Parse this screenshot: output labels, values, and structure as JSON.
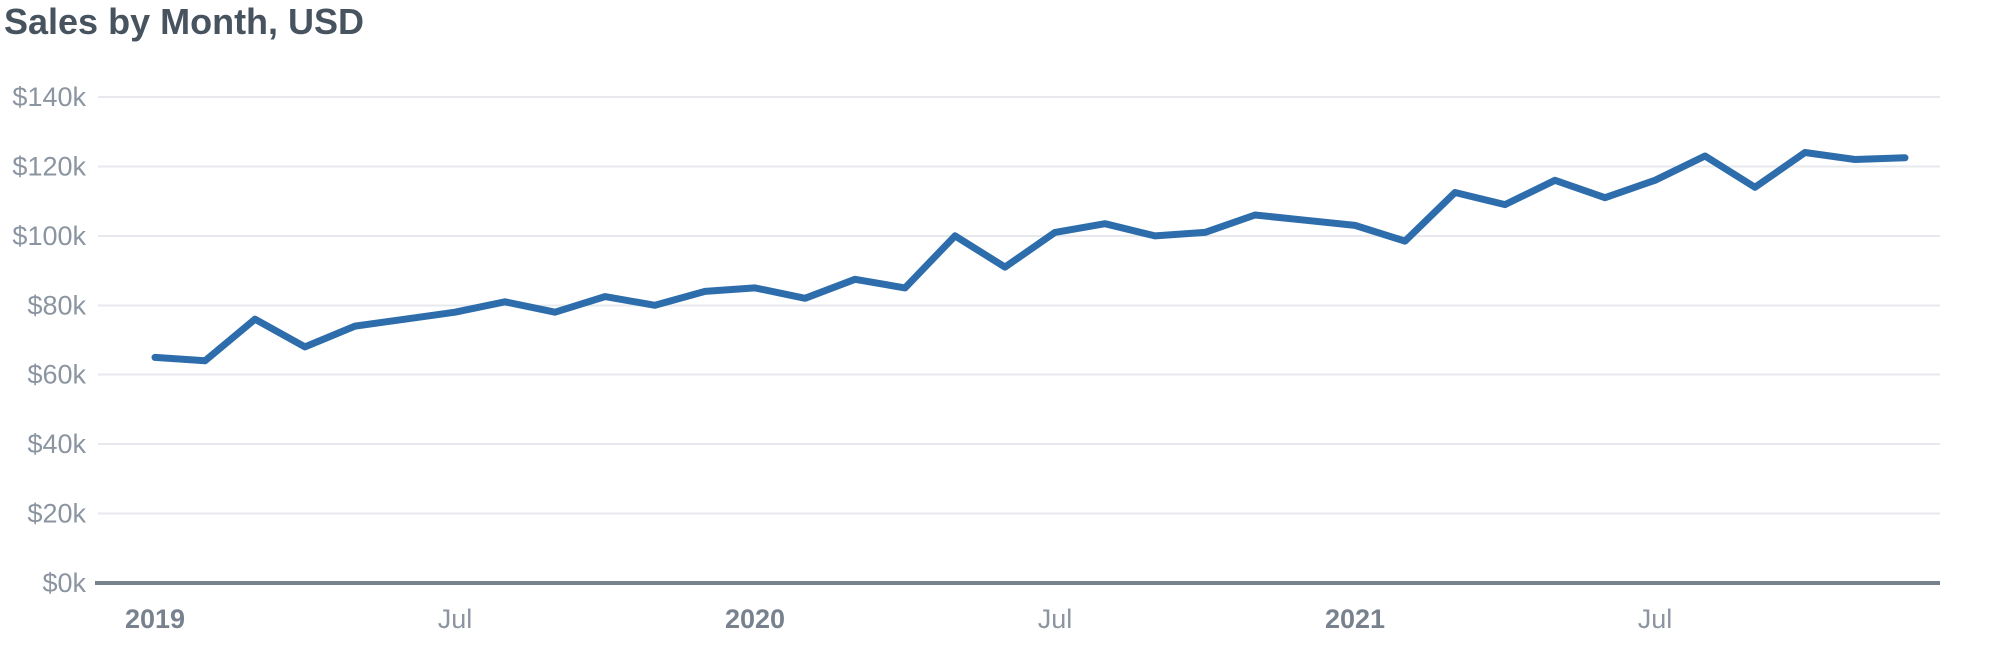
{
  "header": {
    "title": "Sales by Month, USD"
  },
  "chart_data": {
    "type": "line",
    "title": "Sales by Month, USD",
    "unit": "USD, thousands",
    "categories": [
      "Jan 2019",
      "Feb 2019",
      "Mar 2019",
      "Apr 2019",
      "May 2019",
      "Jun 2019",
      "Jul 2019",
      "Aug 2019",
      "Sep 2019",
      "Oct 2019",
      "Nov 2019",
      "Dec 2019",
      "Jan 2020",
      "Feb 2020",
      "Mar 2020",
      "Apr 2020",
      "May 2020",
      "Jun 2020",
      "Jul 2020",
      "Aug 2020",
      "Sep 2020",
      "Oct 2020",
      "Nov 2020",
      "Dec 2020",
      "Jan 2021",
      "Feb 2021",
      "Mar 2021",
      "Apr 2021",
      "May 2021",
      "Jun 2021",
      "Jul 2021",
      "Aug 2021",
      "Sep 2021",
      "Oct 2021",
      "Nov 2021",
      "Dec 2021"
    ],
    "series": [
      {
        "name": "Sales",
        "values": [
          65,
          64,
          76,
          68,
          74,
          76,
          78,
          81,
          78,
          82.5,
          80,
          84,
          85,
          82,
          87.5,
          85,
          100,
          91,
          101,
          103.5,
          100,
          101,
          106,
          104.5,
          103,
          98.5,
          112.5,
          109,
          116,
          111,
          116,
          123,
          114,
          124,
          122,
          122.5
        ]
      }
    ],
    "ylim": [
      0,
      140
    ],
    "yticks": [
      {
        "value": 0,
        "label": "$0k"
      },
      {
        "value": 20,
        "label": "$20k"
      },
      {
        "value": 40,
        "label": "$40k"
      },
      {
        "value": 60,
        "label": "$60k"
      },
      {
        "value": 80,
        "label": "$80k"
      },
      {
        "value": 100,
        "label": "$100k"
      },
      {
        "value": 120,
        "label": "$120k"
      },
      {
        "value": 140,
        "label": "$140k"
      }
    ],
    "xticks": [
      {
        "month_index": 0,
        "label": "2019",
        "bold": true
      },
      {
        "month_index": 6,
        "label": "Jul",
        "bold": false
      },
      {
        "month_index": 12,
        "label": "2020",
        "bold": true
      },
      {
        "month_index": 18,
        "label": "Jul",
        "bold": false
      },
      {
        "month_index": 24,
        "label": "2021",
        "bold": true
      },
      {
        "month_index": 30,
        "label": "Jul",
        "bold": false
      }
    ],
    "grid": "horizontal",
    "legend": "none",
    "colors": {
      "line": "#2e6dab",
      "gridline": "#e7e9ed",
      "baseline": "#78828e",
      "tick_label": "#8b95a1",
      "year_label": "#78828e",
      "title": "#47535e"
    }
  }
}
